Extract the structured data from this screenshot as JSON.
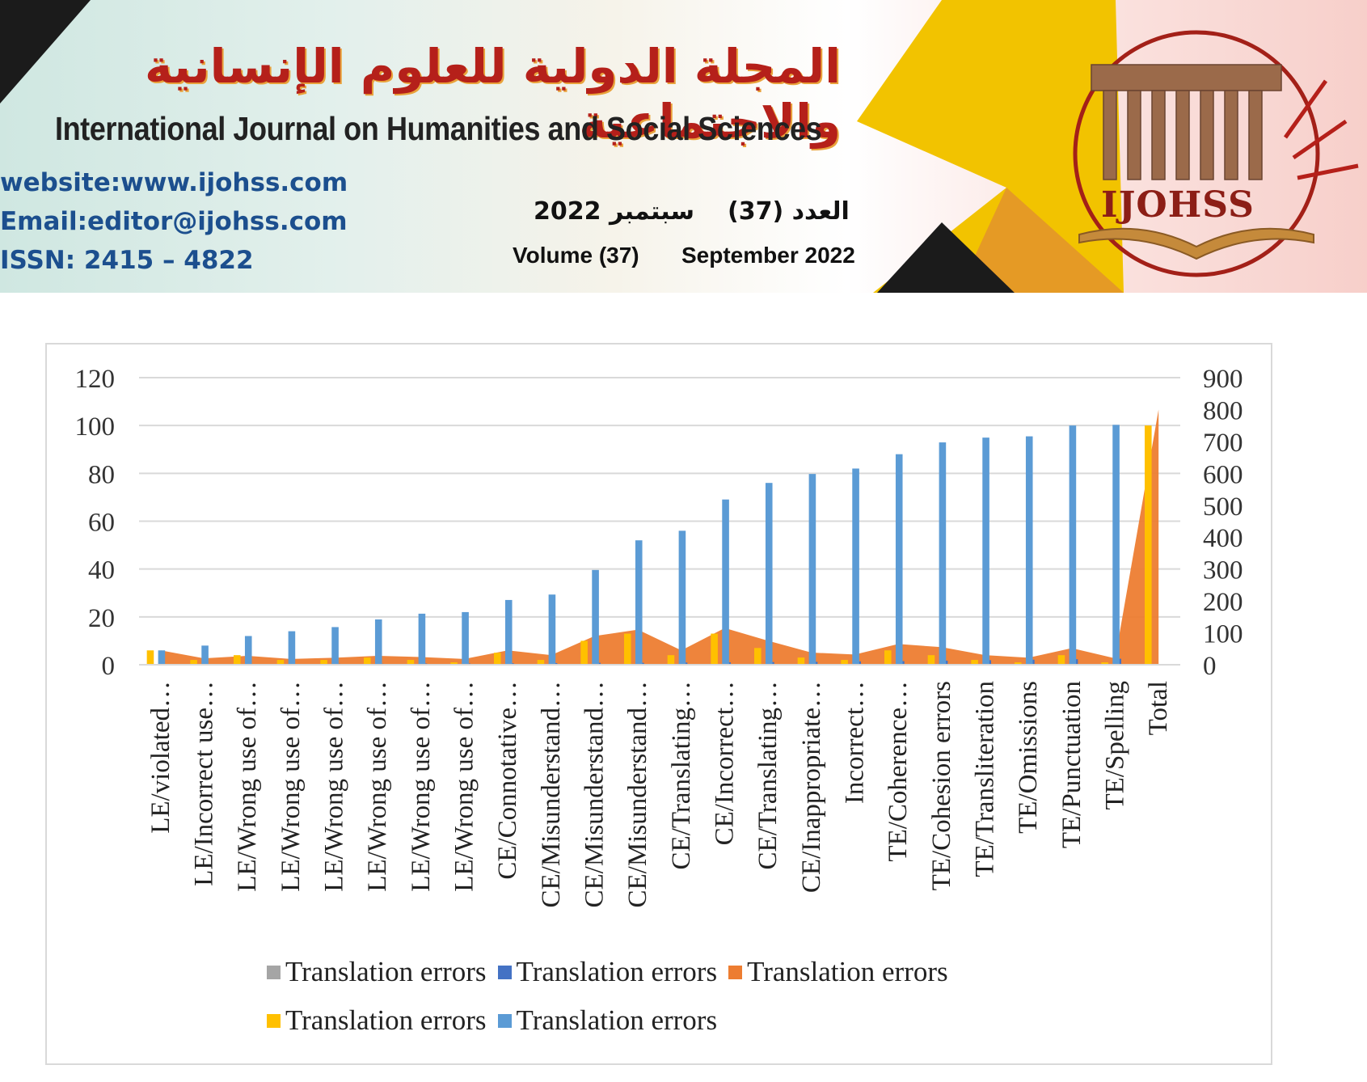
{
  "header": {
    "arabic_title": "المجلة الدولية للعلوم الإنسانية والاجتماعية",
    "english_title": "International Journal on Humanities and Social Sciences",
    "website": "website:www.ijohss.com",
    "email": "Email:editor@ijohss.com",
    "issn": "ISSN: 2415 – 4822",
    "issue_ar": "العدد (37)",
    "date_ar": "سبتمبر 2022",
    "volume": "Volume (37)",
    "date_en": "September 2022",
    "logo_text": "IJOHSS"
  },
  "colors": {
    "gray": "#a5a5a5",
    "dark_blue": "#4472c4",
    "orange": "#ed7d31",
    "yellow": "#ffc000",
    "light_blue": "#5b9bd5",
    "banner_yellow": "#f2c300",
    "banner_orange": "#e59a25",
    "banner_black": "#1b1b1b"
  },
  "chart_data": {
    "type": "bar",
    "categories": [
      "LE/violated…",
      "LE/Incorrect use…",
      "LE/Wrong use of…",
      "LE/Wrong use of…",
      "LE/Wrong use of…",
      "LE/Wrong use of…",
      "LE/Wrong use of…",
      "LE/Wrong use of…",
      "CE/Connotative…",
      "CE/Misunderstand…",
      "CE/Misunderstand…",
      "CE/Misunderstand…",
      "CE/Translating…",
      "CE/Incorrect…",
      "CE/Translating…",
      "CE/Inappropriate…",
      "Incorrect…",
      "TE/Coherence…",
      "TE/Cohesion errors",
      "TE/Transliteration",
      "TE/Omissions",
      "TE/Punctuation",
      "TE/Spelling",
      "Total"
    ],
    "y_left": {
      "ticks": [
        "0",
        "20",
        "40",
        "60",
        "80",
        "100",
        "120"
      ],
      "range": [
        0,
        120
      ]
    },
    "y_right": {
      "ticks": [
        "0",
        "100",
        "200",
        "300",
        "400",
        "500",
        "600",
        "700",
        "800",
        "900"
      ],
      "range": [
        0,
        900
      ]
    },
    "grid": true,
    "legend_position": "bottom",
    "series": [
      {
        "name": "Translation errors",
        "color": "#a5a5a5",
        "kind": "bar",
        "axis": "left",
        "values": [
          0,
          0,
          0,
          0,
          0,
          0,
          0,
          0,
          0,
          0,
          0,
          0,
          0,
          0,
          0,
          0,
          0,
          0,
          0,
          0,
          0,
          0,
          0,
          0
        ]
      },
      {
        "name": "Translation errors",
        "color": "#4472c4",
        "kind": "bar",
        "axis": "left",
        "values": [
          0,
          0.2,
          0.3,
          0.3,
          0.4,
          0.4,
          0.5,
          0.5,
          0.6,
          0.7,
          0.8,
          0.8,
          0.9,
          1,
          1.1,
          1.2,
          1.4,
          1.5,
          1.7,
          1.9,
          2.1,
          2.3,
          2.5,
          0
        ]
      },
      {
        "name": "Translation errors",
        "color": "#ed7d31",
        "kind": "area",
        "axis": "right",
        "values": [
          45,
          20,
          28,
          18,
          22,
          28,
          24,
          18,
          45,
          30,
          90,
          110,
          45,
          115,
          75,
          38,
          32,
          65,
          55,
          30,
          22,
          52,
          20,
          800
        ]
      },
      {
        "name": "Translation errors",
        "color": "#ffc000",
        "kind": "bar",
        "axis": "left",
        "values": [
          6,
          2,
          4,
          2,
          2,
          3,
          2,
          1,
          5,
          2,
          10,
          13,
          4,
          13,
          7,
          3,
          2,
          6,
          4,
          2,
          1,
          4,
          1,
          100
        ]
      },
      {
        "name": "Translation errors",
        "color": "#5b9bd5",
        "kind": "bar",
        "axis": "right",
        "values": [
          45,
          60,
          90,
          105,
          118,
          142,
          160,
          165,
          203,
          220,
          297,
          390,
          420,
          518,
          570,
          598,
          615,
          660,
          697,
          712,
          716,
          750,
          752,
          0
        ]
      }
    ]
  },
  "legend": {
    "rows": [
      [
        {
          "label": "Translation errors",
          "color": "#a5a5a5"
        },
        {
          "label": "Translation errors",
          "color": "#4472c4"
        },
        {
          "label": "Translation errors",
          "color": "#ed7d31"
        }
      ],
      [
        {
          "label": "Translation errors",
          "color": "#ffc000"
        },
        {
          "label": "Translation errors",
          "color": "#5b9bd5"
        }
      ]
    ]
  }
}
